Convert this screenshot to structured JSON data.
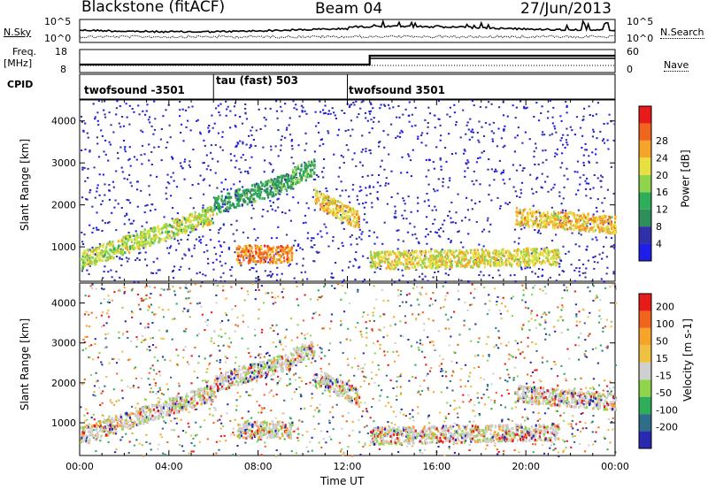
{
  "header": {
    "station": "Blackstone (fitACF)",
    "beam": "Beam 04",
    "date": "27/Jun/2013"
  },
  "noise_panel": {
    "left_label": "N.Sky",
    "right_label": "N.Search",
    "left_ticks": [
      "10^5",
      "10^0"
    ],
    "right_ticks": [
      "10^5",
      "10^0"
    ]
  },
  "freq_panel": {
    "left_label_top": "Freq.",
    "left_label_bottom": "[MHz]",
    "right_label": "Nave",
    "left_ticks": [
      "18",
      "8"
    ],
    "right_ticks": [
      "60",
      "0"
    ]
  },
  "cpid": {
    "label": "CPID",
    "programs": [
      {
        "name": "twofsound -3501",
        "start_hour": 0,
        "end_hour": 6
      },
      {
        "name": "tau (fast) 503",
        "start_hour": 6,
        "end_hour": 12
      },
      {
        "name": "twofsound 3501",
        "start_hour": 12,
        "end_hour": 24
      }
    ]
  },
  "chart_data": [
    {
      "type": "heatmap",
      "name": "power",
      "xlabel": "Time UT",
      "ylabel": "Slant Range [km]",
      "xlim": [
        0,
        24
      ],
      "ylim": [
        180,
        4500
      ],
      "x_ticks": [
        "00:00",
        "04:00",
        "08:00",
        "12:00",
        "16:00",
        "20:00",
        "00:00"
      ],
      "y_ticks": [
        1000,
        2000,
        3000,
        4000
      ],
      "colorbar": {
        "label": "Power [dB]",
        "ticks": [
          "4",
          "8",
          "12",
          "16",
          "20",
          "24",
          "28"
        ],
        "colors": [
          "#1e1ee8",
          "#3030a8",
          "#2e8f5a",
          "#2fae5a",
          "#8fd44a",
          "#e8e040",
          "#f7a52a",
          "#f0641e",
          "#e81a1a"
        ]
      },
      "features": [
        {
          "desc": "main low band",
          "x_range": [
            0,
            6
          ],
          "y_start": 700,
          "y_end": 1800,
          "level": 18
        },
        {
          "desc": "main band",
          "x_range": [
            6,
            9.5
          ],
          "y_start": 2000,
          "y_end": 2600,
          "level": 10
        },
        {
          "desc": "rising arc",
          "x_range": [
            9.5,
            10.5
          ],
          "y_start": 2700,
          "y_end": 2900,
          "level": 12
        },
        {
          "desc": "evening band",
          "x_range": [
            10.5,
            12.5
          ],
          "y_start": 2200,
          "y_end": 1650,
          "level": 22
        },
        {
          "desc": "near range band",
          "x_range": [
            13,
            21.5
          ],
          "y_start": 700,
          "y_end": 800,
          "level": 20
        },
        {
          "desc": "late band",
          "x_range": [
            19.5,
            24
          ],
          "y_start": 1750,
          "y_end": 1550,
          "level": 22
        },
        {
          "desc": "near echo patch",
          "x_range": [
            7,
            9.5
          ],
          "y_start": 850,
          "y_end": 850,
          "level": 26
        }
      ]
    },
    {
      "type": "heatmap",
      "name": "velocity",
      "xlabel": "Time UT",
      "ylabel": "Slant Range [km]",
      "xlim": [
        0,
        24
      ],
      "ylim": [
        180,
        4500
      ],
      "x_ticks": [
        "00:00",
        "04:00",
        "08:00",
        "12:00",
        "16:00",
        "20:00",
        "00:00"
      ],
      "y_ticks": [
        1000,
        2000,
        3000,
        4000
      ],
      "colorbar": {
        "label": "Velocity [m s-1]",
        "ticks": [
          "200",
          "100",
          "50",
          "15",
          "-15",
          "-50",
          "-100",
          "-200"
        ],
        "colors": [
          "#2a2ab0",
          "#2f6e8a",
          "#2fae5a",
          "#8fd44a",
          "#cfcfcf",
          "#f0c040",
          "#f7a52a",
          "#f0641e",
          "#e81a1a"
        ]
      }
    }
  ]
}
